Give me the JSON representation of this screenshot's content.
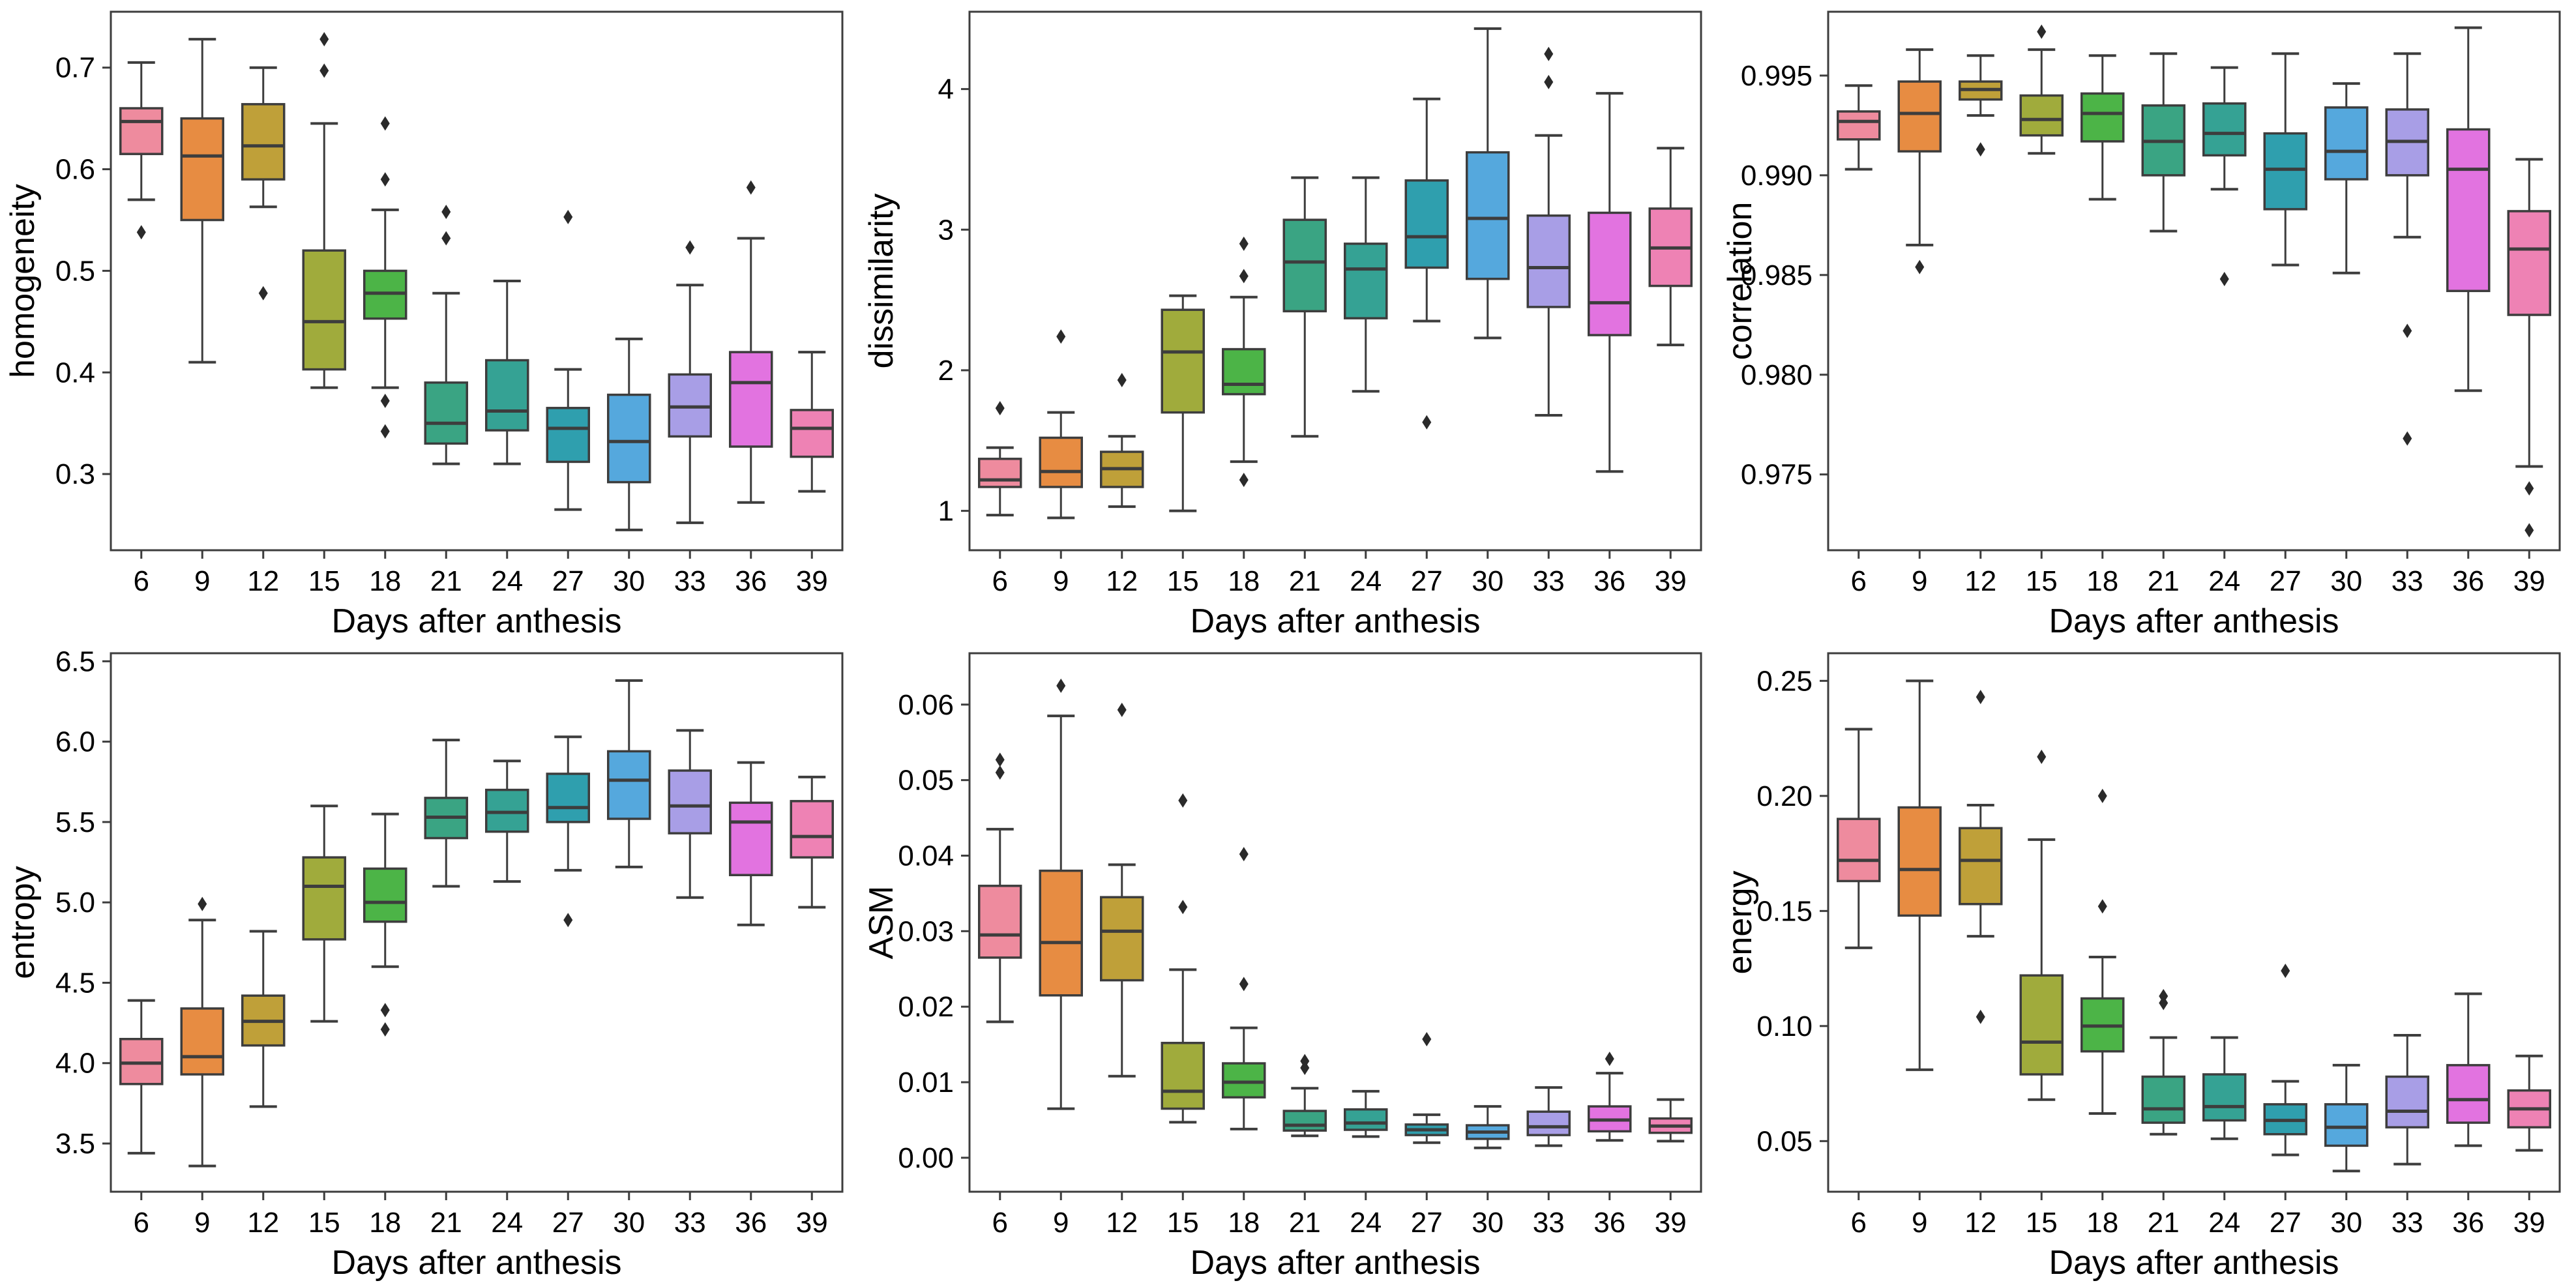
{
  "figure": {
    "background": "#ffffff",
    "frame_color": "#3d3d3d",
    "text_color": "#000000",
    "outlier_color": "#2a2a2a"
  },
  "chart_data": {
    "type": "box",
    "xlabel": "Days after anthesis",
    "categories": [
      "6",
      "9",
      "12",
      "15",
      "18",
      "21",
      "24",
      "27",
      "30",
      "33",
      "36",
      "39"
    ],
    "palette": [
      "#ee8b9e",
      "#e78c42",
      "#bfa039",
      "#a0ab3c",
      "#4cb447",
      "#3aa483",
      "#35a294",
      "#2f9fae",
      "#55a8dd",
      "#a89ee6",
      "#e273e0",
      "#ee82b4"
    ],
    "panels": [
      {
        "ylabel": "homogeneity",
        "ylim": [
          0.225,
          0.755
        ],
        "yticks": {
          "values": [
            0.3,
            0.4,
            0.5,
            0.6,
            0.7
          ],
          "labels": [
            "0.3",
            "0.4",
            "0.5",
            "0.6",
            "0.7"
          ]
        },
        "boxes": [
          {
            "lo": 0.57,
            "q1": 0.615,
            "med": 0.647,
            "q3": 0.66,
            "hi": 0.705,
            "out": [
              0.538
            ]
          },
          {
            "lo": 0.41,
            "q1": 0.55,
            "med": 0.613,
            "q3": 0.65,
            "hi": 0.728,
            "out": []
          },
          {
            "lo": 0.563,
            "q1": 0.59,
            "med": 0.623,
            "q3": 0.664,
            "hi": 0.7,
            "out": [
              0.478
            ]
          },
          {
            "lo": 0.385,
            "q1": 0.403,
            "med": 0.45,
            "q3": 0.52,
            "hi": 0.645,
            "out": [
              0.728,
              0.697
            ]
          },
          {
            "lo": 0.385,
            "q1": 0.453,
            "med": 0.478,
            "q3": 0.5,
            "hi": 0.56,
            "out": [
              0.645,
              0.59,
              0.372,
              0.342
            ]
          },
          {
            "lo": 0.31,
            "q1": 0.33,
            "med": 0.35,
            "q3": 0.39,
            "hi": 0.478,
            "out": [
              0.558,
              0.532
            ]
          },
          {
            "lo": 0.31,
            "q1": 0.343,
            "med": 0.362,
            "q3": 0.412,
            "hi": 0.49,
            "out": []
          },
          {
            "lo": 0.265,
            "q1": 0.312,
            "med": 0.345,
            "q3": 0.365,
            "hi": 0.403,
            "out": [
              0.553
            ]
          },
          {
            "lo": 0.245,
            "q1": 0.292,
            "med": 0.332,
            "q3": 0.378,
            "hi": 0.433,
            "out": []
          },
          {
            "lo": 0.252,
            "q1": 0.337,
            "med": 0.366,
            "q3": 0.398,
            "hi": 0.486,
            "out": [
              0.523
            ]
          },
          {
            "lo": 0.272,
            "q1": 0.327,
            "med": 0.39,
            "q3": 0.42,
            "hi": 0.532,
            "out": [
              0.582
            ]
          },
          {
            "lo": 0.283,
            "q1": 0.317,
            "med": 0.345,
            "q3": 0.363,
            "hi": 0.42,
            "out": []
          }
        ]
      },
      {
        "ylabel": "dissimilarity",
        "ylim": [
          0.72,
          4.55
        ],
        "yticks": {
          "values": [
            1,
            2,
            3,
            4
          ],
          "labels": [
            "1",
            "2",
            "3",
            "4"
          ]
        },
        "boxes": [
          {
            "lo": 0.97,
            "q1": 1.17,
            "med": 1.22,
            "q3": 1.37,
            "hi": 1.45,
            "out": [
              1.73
            ]
          },
          {
            "lo": 0.95,
            "q1": 1.17,
            "med": 1.28,
            "q3": 1.52,
            "hi": 1.7,
            "out": [
              2.24
            ]
          },
          {
            "lo": 1.03,
            "q1": 1.17,
            "med": 1.3,
            "q3": 1.42,
            "hi": 1.53,
            "out": [
              1.93
            ]
          },
          {
            "lo": 1.0,
            "q1": 1.7,
            "med": 2.13,
            "q3": 2.43,
            "hi": 2.53,
            "out": []
          },
          {
            "lo": 1.35,
            "q1": 1.83,
            "med": 1.9,
            "q3": 2.15,
            "hi": 2.52,
            "out": [
              2.9,
              2.67,
              1.22
            ]
          },
          {
            "lo": 1.53,
            "q1": 2.42,
            "med": 2.77,
            "q3": 3.07,
            "hi": 3.37,
            "out": []
          },
          {
            "lo": 1.85,
            "q1": 2.37,
            "med": 2.72,
            "q3": 2.9,
            "hi": 3.37,
            "out": []
          },
          {
            "lo": 2.35,
            "q1": 2.73,
            "med": 2.95,
            "q3": 3.35,
            "hi": 3.93,
            "out": [
              1.63
            ]
          },
          {
            "lo": 2.23,
            "q1": 2.65,
            "med": 3.08,
            "q3": 3.55,
            "hi": 4.43,
            "out": []
          },
          {
            "lo": 1.68,
            "q1": 2.45,
            "med": 2.73,
            "q3": 3.1,
            "hi": 3.67,
            "out": [
              4.25,
              4.05
            ]
          },
          {
            "lo": 1.28,
            "q1": 2.25,
            "med": 2.48,
            "q3": 3.12,
            "hi": 3.97,
            "out": []
          },
          {
            "lo": 2.18,
            "q1": 2.6,
            "med": 2.87,
            "q3": 3.15,
            "hi": 3.58,
            "out": []
          }
        ]
      },
      {
        "ylabel": "correlation",
        "ylim": [
          0.9712,
          0.9982
        ],
        "yticks": {
          "values": [
            0.975,
            0.98,
            0.985,
            0.99,
            0.995
          ],
          "labels": [
            "0.975",
            "0.980",
            "0.985",
            "0.990",
            "0.995"
          ]
        },
        "boxes": [
          {
            "lo": 0.9903,
            "q1": 0.9918,
            "med": 0.9927,
            "q3": 0.9932,
            "hi": 0.9945,
            "out": []
          },
          {
            "lo": 0.9865,
            "q1": 0.9912,
            "med": 0.9931,
            "q3": 0.9947,
            "hi": 0.9963,
            "out": [
              0.9854
            ]
          },
          {
            "lo": 0.993,
            "q1": 0.9938,
            "med": 0.9943,
            "q3": 0.9947,
            "hi": 0.996,
            "out": [
              0.9913
            ]
          },
          {
            "lo": 0.9911,
            "q1": 0.992,
            "med": 0.9928,
            "q3": 0.994,
            "hi": 0.9963,
            "out": [
              0.9972
            ]
          },
          {
            "lo": 0.9888,
            "q1": 0.9917,
            "med": 0.9931,
            "q3": 0.9941,
            "hi": 0.996,
            "out": []
          },
          {
            "lo": 0.9872,
            "q1": 0.99,
            "med": 0.9917,
            "q3": 0.9935,
            "hi": 0.9961,
            "out": []
          },
          {
            "lo": 0.9893,
            "q1": 0.991,
            "med": 0.9921,
            "q3": 0.9936,
            "hi": 0.9954,
            "out": [
              0.9848
            ]
          },
          {
            "lo": 0.9855,
            "q1": 0.9883,
            "med": 0.9903,
            "q3": 0.9921,
            "hi": 0.9961,
            "out": []
          },
          {
            "lo": 0.9851,
            "q1": 0.9898,
            "med": 0.9912,
            "q3": 0.9934,
            "hi": 0.9946,
            "out": []
          },
          {
            "lo": 0.9869,
            "q1": 0.99,
            "med": 0.9917,
            "q3": 0.9933,
            "hi": 0.9961,
            "out": [
              0.9822,
              0.9768
            ]
          },
          {
            "lo": 0.9792,
            "q1": 0.9842,
            "med": 0.9903,
            "q3": 0.9923,
            "hi": 0.9974,
            "out": []
          },
          {
            "lo": 0.9754,
            "q1": 0.983,
            "med": 0.9863,
            "q3": 0.9882,
            "hi": 0.9908,
            "out": [
              0.9743,
              0.9722
            ]
          }
        ]
      },
      {
        "ylabel": "entropy",
        "ylim": [
          3.2,
          6.55
        ],
        "yticks": {
          "values": [
            3.5,
            4.0,
            4.5,
            5.0,
            5.5,
            6.0,
            6.5
          ],
          "labels": [
            "3.5",
            "4.0",
            "4.5",
            "5.0",
            "5.5",
            "6.0",
            "6.5"
          ]
        },
        "boxes": [
          {
            "lo": 3.44,
            "q1": 3.87,
            "med": 4.0,
            "q3": 4.15,
            "hi": 4.39,
            "out": []
          },
          {
            "lo": 3.36,
            "q1": 3.93,
            "med": 4.04,
            "q3": 4.34,
            "hi": 4.89,
            "out": [
              4.99
            ]
          },
          {
            "lo": 3.73,
            "q1": 4.11,
            "med": 4.26,
            "q3": 4.42,
            "hi": 4.82,
            "out": []
          },
          {
            "lo": 4.26,
            "q1": 4.77,
            "med": 5.1,
            "q3": 5.28,
            "hi": 5.6,
            "out": []
          },
          {
            "lo": 4.6,
            "q1": 4.88,
            "med": 5.0,
            "q3": 5.21,
            "hi": 5.55,
            "out": [
              4.33,
              4.21
            ]
          },
          {
            "lo": 5.1,
            "q1": 5.4,
            "med": 5.53,
            "q3": 5.65,
            "hi": 6.01,
            "out": []
          },
          {
            "lo": 5.13,
            "q1": 5.44,
            "med": 5.56,
            "q3": 5.7,
            "hi": 5.88,
            "out": []
          },
          {
            "lo": 5.2,
            "q1": 5.5,
            "med": 5.59,
            "q3": 5.8,
            "hi": 6.03,
            "out": [
              4.89
            ]
          },
          {
            "lo": 5.22,
            "q1": 5.52,
            "med": 5.76,
            "q3": 5.94,
            "hi": 6.38,
            "out": []
          },
          {
            "lo": 5.03,
            "q1": 5.43,
            "med": 5.6,
            "q3": 5.82,
            "hi": 6.07,
            "out": []
          },
          {
            "lo": 4.86,
            "q1": 5.17,
            "med": 5.5,
            "q3": 5.62,
            "hi": 5.87,
            "out": []
          },
          {
            "lo": 4.97,
            "q1": 5.28,
            "med": 5.41,
            "q3": 5.63,
            "hi": 5.78,
            "out": []
          }
        ]
      },
      {
        "ylabel": "ASM",
        "ylim": [
          -0.0045,
          0.0668
        ],
        "yticks": {
          "values": [
            0.0,
            0.01,
            0.02,
            0.03,
            0.04,
            0.05,
            0.06
          ],
          "labels": [
            "0.00",
            "0.01",
            "0.02",
            "0.03",
            "0.04",
            "0.05",
            "0.06"
          ]
        },
        "boxes": [
          {
            "lo": 0.018,
            "q1": 0.0265,
            "med": 0.0295,
            "q3": 0.036,
            "hi": 0.0435,
            "out": [
              0.0527,
              0.051
            ]
          },
          {
            "lo": 0.0065,
            "q1": 0.0215,
            "med": 0.0285,
            "q3": 0.038,
            "hi": 0.0585,
            "out": [
              0.0625
            ]
          },
          {
            "lo": 0.0108,
            "q1": 0.0235,
            "med": 0.03,
            "q3": 0.0345,
            "hi": 0.0388,
            "out": [
              0.0593
            ]
          },
          {
            "lo": 0.0047,
            "q1": 0.0065,
            "med": 0.0088,
            "q3": 0.0152,
            "hi": 0.0249,
            "out": [
              0.0473,
              0.0332
            ]
          },
          {
            "lo": 0.0038,
            "q1": 0.008,
            "med": 0.01,
            "q3": 0.0125,
            "hi": 0.0172,
            "out": [
              0.0402,
              0.023
            ]
          },
          {
            "lo": 0.0029,
            "q1": 0.0036,
            "med": 0.0043,
            "q3": 0.0062,
            "hi": 0.0092,
            "out": [
              0.0128,
              0.0119
            ]
          },
          {
            "lo": 0.0028,
            "q1": 0.0037,
            "med": 0.0046,
            "q3": 0.0064,
            "hi": 0.0088,
            "out": []
          },
          {
            "lo": 0.002,
            "q1": 0.003,
            "med": 0.0037,
            "q3": 0.0044,
            "hi": 0.0057,
            "out": [
              0.0157
            ]
          },
          {
            "lo": 0.0013,
            "q1": 0.0025,
            "med": 0.0034,
            "q3": 0.0043,
            "hi": 0.0068,
            "out": []
          },
          {
            "lo": 0.0016,
            "q1": 0.003,
            "med": 0.0041,
            "q3": 0.0061,
            "hi": 0.0093,
            "out": []
          },
          {
            "lo": 0.0023,
            "q1": 0.0035,
            "med": 0.005,
            "q3": 0.0068,
            "hi": 0.0112,
            "out": [
              0.0131
            ]
          },
          {
            "lo": 0.0022,
            "q1": 0.0033,
            "med": 0.0042,
            "q3": 0.0052,
            "hi": 0.0077,
            "out": []
          }
        ]
      },
      {
        "ylabel": "energy",
        "ylim": [
          0.028,
          0.262
        ],
        "yticks": {
          "values": [
            0.05,
            0.1,
            0.15,
            0.2,
            0.25
          ],
          "labels": [
            "0.05",
            "0.10",
            "0.15",
            "0.20",
            "0.25"
          ]
        },
        "boxes": [
          {
            "lo": 0.134,
            "q1": 0.163,
            "med": 0.172,
            "q3": 0.19,
            "hi": 0.229,
            "out": []
          },
          {
            "lo": 0.081,
            "q1": 0.148,
            "med": 0.168,
            "q3": 0.195,
            "hi": 0.25,
            "out": []
          },
          {
            "lo": 0.139,
            "q1": 0.153,
            "med": 0.172,
            "q3": 0.186,
            "hi": 0.196,
            "out": [
              0.243,
              0.104
            ]
          },
          {
            "lo": 0.068,
            "q1": 0.079,
            "med": 0.093,
            "q3": 0.122,
            "hi": 0.181,
            "out": [
              0.217
            ]
          },
          {
            "lo": 0.062,
            "q1": 0.089,
            "med": 0.1,
            "q3": 0.112,
            "hi": 0.13,
            "out": [
              0.2,
              0.152
            ]
          },
          {
            "lo": 0.053,
            "q1": 0.058,
            "med": 0.064,
            "q3": 0.078,
            "hi": 0.095,
            "out": [
              0.113,
              0.11
            ]
          },
          {
            "lo": 0.051,
            "q1": 0.059,
            "med": 0.065,
            "q3": 0.079,
            "hi": 0.095,
            "out": []
          },
          {
            "lo": 0.044,
            "q1": 0.053,
            "med": 0.059,
            "q3": 0.066,
            "hi": 0.076,
            "out": [
              0.124
            ]
          },
          {
            "lo": 0.037,
            "q1": 0.048,
            "med": 0.056,
            "q3": 0.066,
            "hi": 0.083,
            "out": []
          },
          {
            "lo": 0.04,
            "q1": 0.056,
            "med": 0.063,
            "q3": 0.078,
            "hi": 0.096,
            "out": []
          },
          {
            "lo": 0.048,
            "q1": 0.058,
            "med": 0.068,
            "q3": 0.083,
            "hi": 0.114,
            "out": []
          },
          {
            "lo": 0.046,
            "q1": 0.056,
            "med": 0.064,
            "q3": 0.072,
            "hi": 0.087,
            "out": []
          }
        ]
      }
    ]
  }
}
